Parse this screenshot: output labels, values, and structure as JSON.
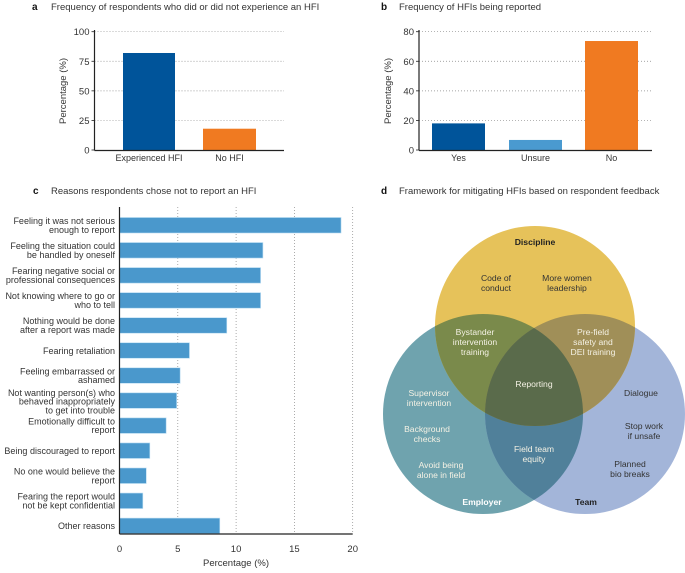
{
  "chart_data": [
    {
      "panel": "a",
      "type": "bar",
      "title": "Frequency of respondents who did or did not experience an HFI",
      "ylabel": "Percentage (%)",
      "xlabel": "",
      "ylim": [
        0,
        100
      ],
      "yticks": [
        0,
        25,
        50,
        75,
        100
      ],
      "grid": "horizontal dotted",
      "categories": [
        "Experienced HFI",
        "No HFI"
      ],
      "values": [
        82,
        18
      ],
      "colors": [
        "#00549a",
        "#f07a21"
      ]
    },
    {
      "panel": "b",
      "type": "bar",
      "title": "Frequency of HFIs being reported",
      "ylabel": "Percentage (%)",
      "xlabel": "",
      "ylim": [
        0,
        80
      ],
      "yticks": [
        0,
        20,
        40,
        60,
        80
      ],
      "grid": "horizontal dotted",
      "categories": [
        "Yes",
        "Unsure",
        "No"
      ],
      "values": [
        18,
        6.8,
        73.7
      ],
      "colors": [
        "#00549a",
        "#4a9ad0",
        "#f07a21"
      ]
    },
    {
      "panel": "c",
      "type": "bar",
      "orientation": "horizontal",
      "title": "Reasons respondents chose not to report an HFI",
      "xlabel": "Percentage (%)",
      "ylabel": "",
      "xlim": [
        0,
        20
      ],
      "xticks": [
        0,
        5,
        10,
        15,
        20
      ],
      "grid": "vertical dotted",
      "color": "#4a98cc",
      "categories": [
        [
          "Feeling it was not serious",
          "enough to report"
        ],
        [
          "Feeling the situation could",
          "be handled by oneself"
        ],
        [
          "Fearing negative social or",
          "professional consequences"
        ],
        [
          "Not knowing where to go or",
          "who to tell"
        ],
        [
          "Nothing would be done",
          "after a report was made"
        ],
        [
          "Fearing retaliation"
        ],
        [
          "Feeling embarrassed or",
          "ashamed"
        ],
        [
          "Not wanting person(s) who",
          "behaved inappropriately",
          "to get into trouble"
        ],
        [
          "Emotionally difficult to",
          "report"
        ],
        [
          "Being discouraged to report"
        ],
        [
          "No one would believe the",
          "report"
        ],
        [
          "Fearing the report would",
          "not be kept confidential"
        ],
        [
          "Other reasons"
        ]
      ],
      "values": [
        19.0,
        12.3,
        12.1,
        12.1,
        9.2,
        6.0,
        5.2,
        4.9,
        4.0,
        2.6,
        2.3,
        2.0,
        8.6
      ]
    }
  ],
  "framework": {
    "panel": "d",
    "title": "Framework for mitigating HFIs based on respondent feedback",
    "circles": {
      "discipline": {
        "label": "Discipline",
        "color": "#e6c25a"
      },
      "employer": {
        "label": "Employer",
        "color": "#6fa3ae"
      },
      "team": {
        "label": "Team",
        "color": "#a3b5d9"
      }
    },
    "overlap_colors": {
      "discipline_employer": "#7a8a4b",
      "discipline_team": "#a08f58",
      "employer_team": "#50809a",
      "all": "#5a6b4b"
    },
    "items": {
      "discipline_only": [
        [
          "Code of",
          "conduct"
        ],
        [
          "More women",
          "leadership"
        ]
      ],
      "discipline_employer": [
        [
          "Bystander",
          "intervention",
          "training"
        ]
      ],
      "discipline_team": [
        [
          "Pre-field",
          "safety and",
          "DEI training"
        ]
      ],
      "all": [
        [
          "Reporting"
        ]
      ],
      "employer_only": [
        [
          "Supervisor",
          "intervention"
        ],
        [
          "Background",
          "checks"
        ],
        [
          "Avoid being",
          "alone in field"
        ]
      ],
      "employer_team": [
        [
          "Field team",
          "equity"
        ]
      ],
      "team_only": [
        [
          "Dialogue"
        ],
        [
          "Stop work",
          "if unsafe"
        ],
        [
          "Planned",
          "bio breaks"
        ]
      ]
    }
  }
}
